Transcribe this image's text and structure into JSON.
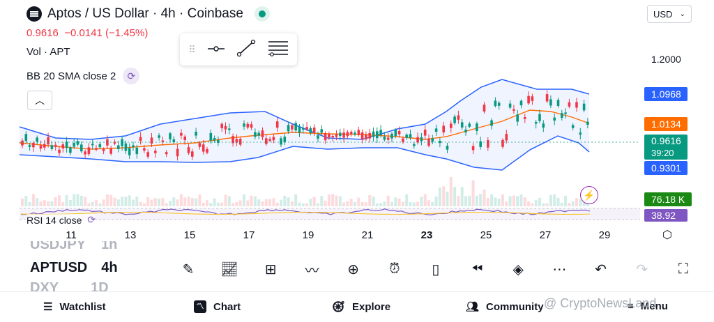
{
  "header": {
    "title": "Aptos / US Dollar · 4h · Coinbase",
    "price": "0.9616",
    "change": "−0.0141",
    "change_pct": "(−1.45%)"
  },
  "indicators": {
    "vol": "Vol · APT",
    "bb": "BB 20 SMA close 2",
    "rsi": "RSI 14 close"
  },
  "currency_select": "USD",
  "price_axis": {
    "level_label": "1.2000",
    "upper_band": "1.0968",
    "middle_band": "1.0134",
    "last_price": "0.9616",
    "countdown": "39:20",
    "lower_band": "0.9301",
    "volume": "76.18 K",
    "rsi": "38.92"
  },
  "colors": {
    "up": "#089981",
    "down": "#f23645",
    "band": "#2962ff",
    "basis": "#ff6d00",
    "rsi": "#7e57c2"
  },
  "x_ticks": [
    "11",
    "13",
    "15",
    "17",
    "19",
    "21",
    "23",
    "25",
    "27",
    "29"
  ],
  "symbols": {
    "prev": {
      "name": "USDJPY",
      "tf": "1h"
    },
    "current": {
      "name": "APTUSD",
      "tf": "4h"
    },
    "next": {
      "name": "DXY",
      "tf": "1D"
    }
  },
  "toolbar": {
    "icons": [
      "pen-icon",
      "chart-up-icon",
      "grid-icon",
      "trend-icon",
      "plus-icon",
      "alarm-icon",
      "candles-icon",
      "rewind-icon",
      "layers-icon",
      "more-icon",
      "undo-icon",
      "redo-icon",
      "fullscreen-icon"
    ]
  },
  "nav": {
    "watchlist": "Watchlist",
    "chart": "Chart",
    "explore": "Explore",
    "community": "Community",
    "menu": "Menu"
  },
  "watermark": "@ CryptoNewsLand"
}
